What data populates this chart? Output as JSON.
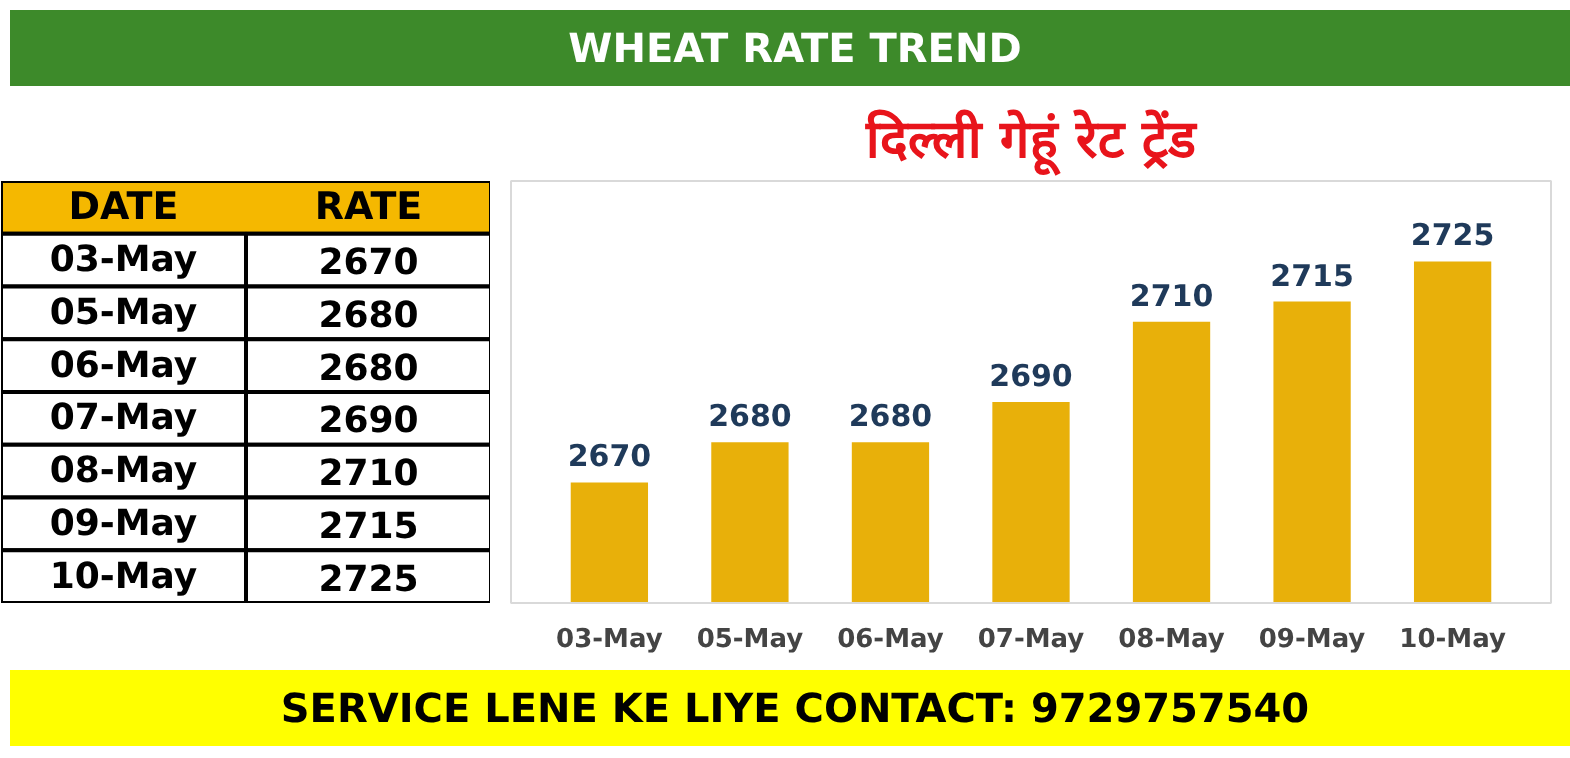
{
  "chart_data": [
    {
      "type": "other",
      "categories": [
        "03-May",
        "05-May",
        "06-May",
        "07-May",
        "08-May",
        "09-May",
        "10-May"
      ],
      "values": [
        2670,
        2680,
        2680,
        2690,
        2710,
        2715,
        2725
      ],
      "data_labels": true,
      "annotations": [
        "DATE",
        "RATE"
      ]
    },
    {
      "type": "bar",
      "title": "दिल्ली गेहूं रेट ट्रेंड",
      "subtitle": "WHEAT RATE TREND",
      "categories": [
        "03-May",
        "05-May",
        "06-May",
        "07-May",
        "08-May",
        "09-May",
        "10-May"
      ],
      "values": [
        2670,
        2680,
        2680,
        2690,
        2710,
        2715,
        2725
      ],
      "color": "#e8b00a",
      "data_labels": true,
      "ylim": [
        2640,
        2745
      ],
      "tick_labels": "x",
      "grid": false,
      "annotations": [
        "SERVICE LENE KE LIYE CONTACT: 9729757540"
      ]
    }
  ]
}
